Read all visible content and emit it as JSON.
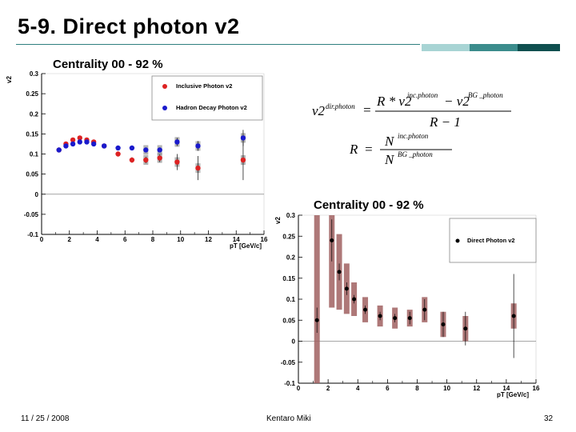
{
  "slide": {
    "title": "5-9. Direct photon v2",
    "date": "11 / 25 / 2008",
    "author": "Kentaro Miki",
    "page": "32"
  },
  "colors": {
    "accent_dark": "#0f4f4f",
    "accent_mid": "#3b8c8c",
    "accent_light": "#a8d4d4",
    "inclusive": "#dd2222",
    "hadron": "#1a1acc",
    "direct": "#000000",
    "sys_band_red": "#a06060",
    "sys_band_grey": "#808080"
  },
  "formula": {
    "eq1_lhs": "v2",
    "eq1_lhs_sup": "dir.photon",
    "eq1_num": "R * v2",
    "eq1_num_sup1": "inc.photon",
    "eq1_num_minus": "− v2",
    "eq1_num_sup2": "BG _photon",
    "eq1_den": "R − 1",
    "eq2_lhs": "R",
    "eq2_num": "N",
    "eq2_num_sup": "inc.photon",
    "eq2_den": "N",
    "eq2_den_sup": "BG _photon"
  },
  "chart_data": [
    {
      "type": "scatter",
      "title": "Centrality 00 - 92 %",
      "xlabel": "pT [GeV/c]",
      "ylabel": "v2",
      "xlim": [
        0,
        16
      ],
      "ylim": [
        -0.1,
        0.3
      ],
      "x_ticks": [
        "0",
        "2",
        "4",
        "6",
        "8",
        "10",
        "12",
        "14",
        "16"
      ],
      "y_ticks": [
        "-0.1",
        "-0.05",
        "0",
        "0.05",
        "0.1",
        "0.15",
        "0.2",
        "0.25",
        "0.3"
      ],
      "legend_position": "top-right",
      "series": [
        {
          "name": "Inclusive Photon v2",
          "color": "#dd2222",
          "x": [
            1.25,
            1.75,
            2.25,
            2.75,
            3.25,
            3.75,
            4.5,
            5.5,
            6.5,
            7.5,
            8.5,
            9.75,
            11.25,
            14.5
          ],
          "y": [
            0.11,
            0.125,
            0.135,
            0.14,
            0.135,
            0.13,
            0.12,
            0.1,
            0.085,
            0.085,
            0.09,
            0.08,
            0.065,
            0.085
          ],
          "err": [
            0.003,
            0.003,
            0.003,
            0.003,
            0.004,
            0.004,
            0.005,
            0.006,
            0.007,
            0.008,
            0.01,
            0.02,
            0.03,
            0.05
          ]
        },
        {
          "name": "Hadron Decay Photon v2",
          "color": "#1a1acc",
          "x": [
            1.25,
            1.75,
            2.25,
            2.75,
            3.25,
            3.75,
            4.5,
            5.5,
            6.5,
            7.5,
            8.5,
            9.75,
            11.25,
            14.5
          ],
          "y": [
            0.11,
            0.12,
            0.125,
            0.13,
            0.13,
            0.125,
            0.12,
            0.115,
            0.115,
            0.11,
            0.11,
            0.13,
            0.12,
            0.14
          ],
          "err": [
            0.002,
            0.002,
            0.002,
            0.002,
            0.002,
            0.002,
            0.003,
            0.003,
            0.003,
            0.004,
            0.006,
            0.01,
            0.012,
            0.02
          ]
        }
      ]
    },
    {
      "type": "scatter",
      "title": "Centrality 00 - 92 %",
      "xlabel": "pT [GeV/c]",
      "ylabel": "v2",
      "xlim": [
        0,
        16
      ],
      "ylim": [
        -0.1,
        0.3
      ],
      "x_ticks": [
        "0",
        "2",
        "4",
        "6",
        "8",
        "10",
        "12",
        "14",
        "16"
      ],
      "y_ticks": [
        "-0.1",
        "-0.05",
        "0",
        "0.05",
        "0.1",
        "0.15",
        "0.2",
        "0.25",
        "0.3"
      ],
      "legend_position": "top-right",
      "series": [
        {
          "name": "Direct Photon v2",
          "color": "#000000",
          "x": [
            1.25,
            2.25,
            2.75,
            3.25,
            3.75,
            4.5,
            5.5,
            6.5,
            7.5,
            8.5,
            9.75,
            11.25,
            14.5
          ],
          "y": [
            0.05,
            0.24,
            0.165,
            0.125,
            0.1,
            0.075,
            0.06,
            0.055,
            0.055,
            0.075,
            0.04,
            0.03,
            0.06
          ],
          "err": [
            0.03,
            0.05,
            0.02,
            0.015,
            0.01,
            0.01,
            0.01,
            0.01,
            0.015,
            0.025,
            0.03,
            0.04,
            0.1
          ],
          "sys": [
            0.3,
            0.16,
            0.09,
            0.06,
            0.04,
            0.03,
            0.025,
            0.025,
            0.02,
            0.03,
            0.03,
            0.03,
            0.03
          ]
        }
      ]
    }
  ]
}
